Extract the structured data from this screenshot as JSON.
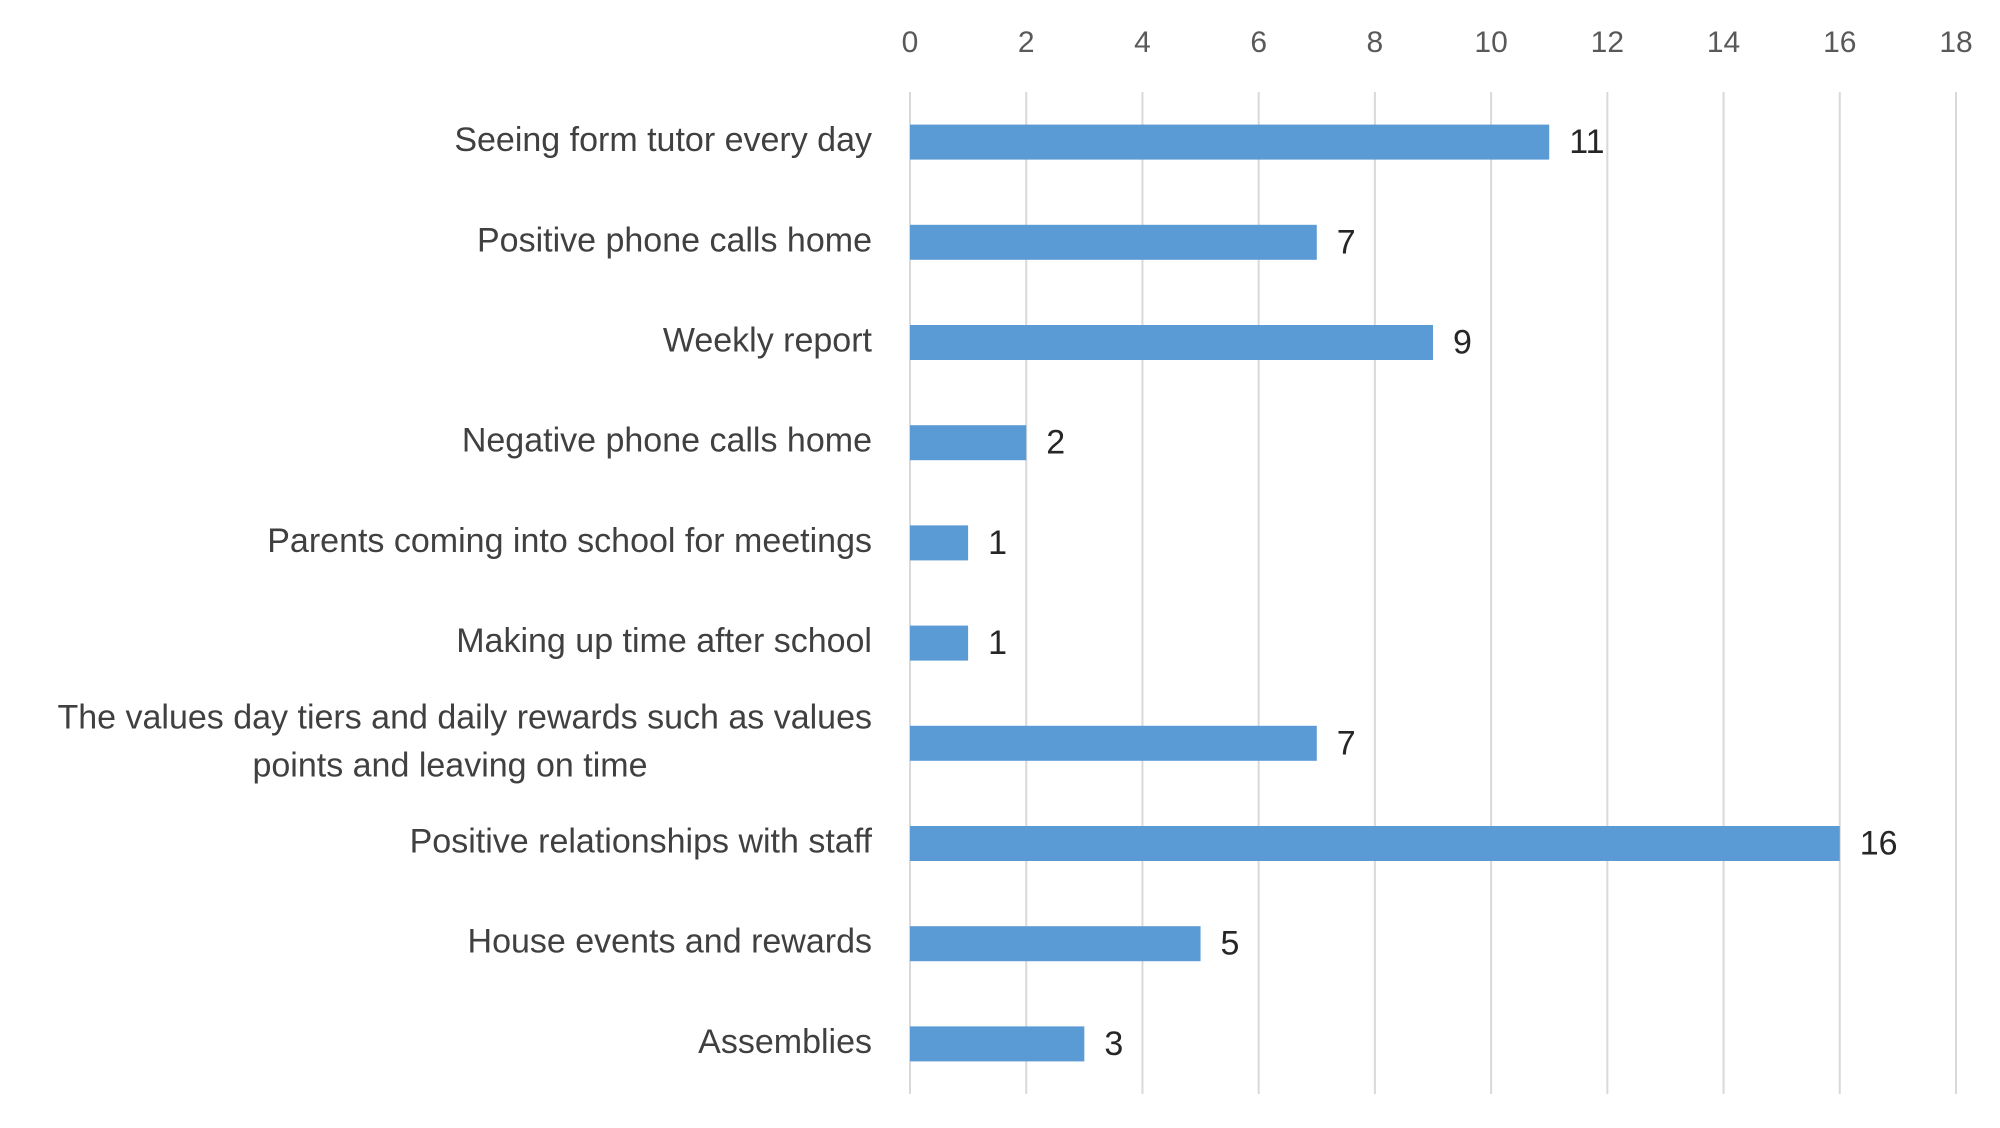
{
  "chart_data": {
    "type": "bar",
    "orientation": "horizontal",
    "categories": [
      [
        "Seeing form tutor every day"
      ],
      [
        "Positive phone calls home"
      ],
      [
        "Weekly report"
      ],
      [
        "Negative phone calls home"
      ],
      [
        "Parents coming into school for meetings"
      ],
      [
        "Making up time after school"
      ],
      [
        "The values day tiers and daily rewards such as values",
        "points and leaving on time"
      ],
      [
        "Positive relationships with staff"
      ],
      [
        "House events and rewards"
      ],
      [
        "Assemblies"
      ]
    ],
    "values": [
      11,
      7,
      9,
      2,
      1,
      1,
      7,
      16,
      5,
      3
    ],
    "xlim": [
      0,
      18
    ],
    "xticks": [
      "0",
      "2",
      "4",
      "6",
      "8",
      "10",
      "12",
      "14",
      "16",
      "18"
    ],
    "x_axis_position": "top",
    "grid": true,
    "data_labels": true,
    "bar_color": "#5b9bd5",
    "title": "",
    "xlabel": "",
    "ylabel": ""
  }
}
